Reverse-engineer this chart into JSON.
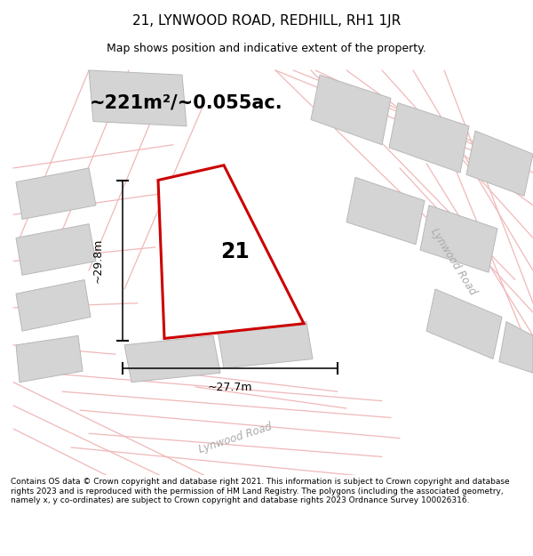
{
  "title": "21, LYNWOOD ROAD, REDHILL, RH1 1JR",
  "subtitle": "Map shows position and indicative extent of the property.",
  "area_text": "~221m²/~0.055ac.",
  "label_21": "21",
  "dim_height": "~29.8m",
  "dim_width": "~27.7m",
  "road_label_bottom": "Lynwood Road",
  "road_label_right": "Lynwood Road",
  "footer": "Contains OS data © Crown copyright and database right 2021. This information is subject to Crown copyright and database rights 2023 and is reproduced with the permission of HM Land Registry. The polygons (including the associated geometry, namely x, y co-ordinates) are subject to Crown copyright and database rights 2023 Ordnance Survey 100026316.",
  "bg_color": "#ffffff",
  "map_bg": "#ffffff",
  "plot_outline_color": "#cc0000",
  "plot_fill_color": "#ffffff",
  "neighbor_fill": "#d4d4d4",
  "neighbor_stroke": "#c0c0c0",
  "road_line_color": "#f0b8b8",
  "dim_line_color": "#111111",
  "title_fontsize": 11,
  "subtitle_fontsize": 9,
  "area_fontsize": 16,
  "footer_fontsize": 6.5
}
